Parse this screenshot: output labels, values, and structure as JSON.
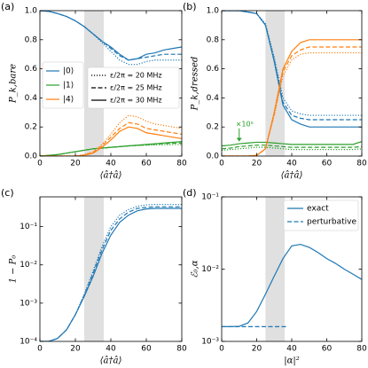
{
  "chart_data": [
    {
      "type": "line",
      "panel_label": "(a)",
      "xlabel": "⟨â†â⟩",
      "ylabel": "P_k,bare",
      "xlim": [
        0,
        80
      ],
      "xticks": [
        0,
        20,
        40,
        60,
        80
      ],
      "ylim": [
        0,
        1
      ],
      "yticks": [
        {
          "value": 0,
          "label": "0.0"
        },
        {
          "value": 0.2,
          "label": "0.2"
        },
        {
          "value": 0.4,
          "label": "0.4"
        },
        {
          "value": 0.6,
          "label": "0.6"
        },
        {
          "value": 0.8,
          "label": "0.8"
        },
        {
          "value": 1,
          "label": "1.0"
        }
      ],
      "shade": [
        25,
        36
      ],
      "x": [
        0,
        5,
        10,
        15,
        20,
        25,
        30,
        35,
        40,
        45,
        50,
        55,
        60,
        65,
        70,
        75,
        80
      ],
      "series": [
        {
          "color": "#1f77b4",
          "linestyle": "dotted",
          "values": [
            1.0,
            0.995,
            0.98,
            0.96,
            0.93,
            0.89,
            0.84,
            0.78,
            0.72,
            0.66,
            0.63,
            0.63,
            0.65,
            0.66,
            0.66,
            0.66,
            0.66
          ]
        },
        {
          "color": "#1f77b4",
          "linestyle": "dashed",
          "values": [
            1.0,
            0.995,
            0.98,
            0.96,
            0.93,
            0.89,
            0.84,
            0.79,
            0.74,
            0.69,
            0.66,
            0.67,
            0.68,
            0.69,
            0.7,
            0.7,
            0.7
          ]
        },
        {
          "color": "#1f77b4",
          "linestyle": "solid",
          "values": [
            1.0,
            0.995,
            0.98,
            0.96,
            0.93,
            0.89,
            0.84,
            0.79,
            0.75,
            0.7,
            0.66,
            0.67,
            0.7,
            0.71,
            0.73,
            0.74,
            0.75
          ]
        },
        {
          "color": "#2ca02c",
          "linestyle": "dotted",
          "values": [
            0,
            0.005,
            0.01,
            0.02,
            0.03,
            0.04,
            0.05,
            0.055,
            0.06,
            0.065,
            0.07,
            0.072,
            0.074,
            0.076,
            0.078,
            0.079,
            0.08
          ]
        },
        {
          "color": "#2ca02c",
          "linestyle": "dashed",
          "values": [
            0,
            0.005,
            0.01,
            0.02,
            0.03,
            0.04,
            0.05,
            0.055,
            0.06,
            0.065,
            0.07,
            0.074,
            0.078,
            0.082,
            0.086,
            0.088,
            0.09
          ]
        },
        {
          "color": "#2ca02c",
          "linestyle": "solid",
          "values": [
            0,
            0.005,
            0.01,
            0.02,
            0.03,
            0.04,
            0.05,
            0.055,
            0.06,
            0.065,
            0.07,
            0.075,
            0.08,
            0.085,
            0.09,
            0.095,
            0.1
          ]
        },
        {
          "color": "#ff7f0e",
          "linestyle": "dotted",
          "values": [
            0,
            0,
            0,
            0,
            0,
            0.01,
            0.03,
            0.08,
            0.15,
            0.23,
            0.28,
            0.27,
            0.24,
            0.22,
            0.21,
            0.2,
            0.19
          ]
        },
        {
          "color": "#ff7f0e",
          "linestyle": "dashed",
          "values": [
            0,
            0,
            0,
            0,
            0,
            0.007,
            0.025,
            0.07,
            0.13,
            0.19,
            0.23,
            0.22,
            0.19,
            0.18,
            0.17,
            0.16,
            0.15
          ]
        },
        {
          "color": "#ff7f0e",
          "linestyle": "solid",
          "values": [
            0,
            0,
            0,
            0,
            0,
            0.005,
            0.02,
            0.06,
            0.11,
            0.17,
            0.2,
            0.19,
            0.16,
            0.15,
            0.14,
            0.13,
            0.12
          ]
        }
      ],
      "legend": [
        {
          "label": "|0⟩",
          "color": "#1f77b4"
        },
        {
          "label": "|1⟩",
          "color": "#2ca02c"
        },
        {
          "label": "|4⟩",
          "color": "#ff7f0e"
        }
      ],
      "style_legend": [
        {
          "label": "ε/2π = 20 MHz",
          "linestyle": "dotted"
        },
        {
          "label": "ε/2π = 25 MHz",
          "linestyle": "dashed"
        },
        {
          "label": "ε/2π = 30 MHz",
          "linestyle": "solid"
        }
      ]
    },
    {
      "type": "line",
      "panel_label": "(b)",
      "xlabel": "⟨â†â⟩",
      "ylabel": "P_k,dressed",
      "annotation": "×10⁵",
      "xlim": [
        0,
        80
      ],
      "xticks": [
        0,
        20,
        40,
        60,
        80
      ],
      "ylim": [
        0,
        1
      ],
      "yticks": [
        {
          "value": 0,
          "label": "0.0"
        },
        {
          "value": 0.2,
          "label": "0.2"
        },
        {
          "value": 0.4,
          "label": "0.4"
        },
        {
          "value": 0.6,
          "label": "0.6"
        },
        {
          "value": 0.8,
          "label": "0.8"
        },
        {
          "value": 1,
          "label": "1.0"
        }
      ],
      "shade": [
        25,
        36
      ],
      "x": [
        0,
        5,
        10,
        15,
        20,
        25,
        30,
        35,
        40,
        45,
        50,
        55,
        60,
        65,
        70,
        75,
        80
      ],
      "series": [
        {
          "color": "#1f77b4",
          "linestyle": "dotted",
          "values": [
            1.0,
            1.0,
            1.0,
            0.99,
            0.98,
            0.91,
            0.68,
            0.4,
            0.31,
            0.29,
            0.28,
            0.28,
            0.28,
            0.28,
            0.28,
            0.28,
            0.28
          ]
        },
        {
          "color": "#1f77b4",
          "linestyle": "dashed",
          "values": [
            1.0,
            1.0,
            1.0,
            0.99,
            0.98,
            0.9,
            0.66,
            0.37,
            0.28,
            0.26,
            0.25,
            0.25,
            0.25,
            0.25,
            0.25,
            0.25,
            0.25
          ]
        },
        {
          "color": "#1f77b4",
          "linestyle": "solid",
          "values": [
            1.0,
            1.0,
            1.0,
            0.99,
            0.98,
            0.9,
            0.65,
            0.35,
            0.25,
            0.22,
            0.2,
            0.2,
            0.2,
            0.2,
            0.2,
            0.2,
            0.2
          ]
        },
        {
          "color": "#2ca02c",
          "linestyle": "dotted",
          "values": [
            0.04,
            0.045,
            0.05,
            0.055,
            0.06,
            0.06,
            0.055,
            0.05,
            0.045,
            0.045,
            0.045,
            0.045,
            0.045,
            0.045,
            0.045,
            0.045,
            0.05
          ]
        },
        {
          "color": "#2ca02c",
          "linestyle": "dashed",
          "values": [
            0.05,
            0.055,
            0.065,
            0.07,
            0.075,
            0.075,
            0.07,
            0.065,
            0.06,
            0.06,
            0.06,
            0.06,
            0.06,
            0.06,
            0.06,
            0.06,
            0.065
          ]
        },
        {
          "color": "#2ca02c",
          "linestyle": "solid",
          "values": [
            0.07,
            0.075,
            0.085,
            0.09,
            0.095,
            0.095,
            0.09,
            0.085,
            0.08,
            0.08,
            0.08,
            0.08,
            0.08,
            0.08,
            0.08,
            0.08,
            0.1
          ]
        },
        {
          "color": "#ff7f0e",
          "linestyle": "dotted",
          "values": [
            0,
            0,
            0,
            0,
            0.005,
            0.05,
            0.28,
            0.55,
            0.66,
            0.7,
            0.71,
            0.71,
            0.71,
            0.71,
            0.71,
            0.71,
            0.71
          ]
        },
        {
          "color": "#ff7f0e",
          "linestyle": "dashed",
          "values": [
            0,
            0,
            0,
            0,
            0.005,
            0.05,
            0.29,
            0.58,
            0.69,
            0.73,
            0.75,
            0.75,
            0.75,
            0.75,
            0.75,
            0.75,
            0.75
          ]
        },
        {
          "color": "#ff7f0e",
          "linestyle": "solid",
          "values": [
            0,
            0,
            0,
            0,
            0.005,
            0.05,
            0.3,
            0.6,
            0.72,
            0.78,
            0.8,
            0.8,
            0.8,
            0.8,
            0.8,
            0.8,
            0.8
          ]
        }
      ]
    },
    {
      "type": "line",
      "panel_label": "(c)",
      "xlabel": "⟨â†â⟩",
      "ylabel": "1 − P₀",
      "yscale": "log",
      "xlim": [
        0,
        80
      ],
      "xticks": [
        0,
        20,
        40,
        60,
        80
      ],
      "ylim": [
        0.0001,
        0.6
      ],
      "yticks": [
        {
          "value": 0.0001,
          "label": "10⁻⁴"
        },
        {
          "value": 0.001,
          "label": "10⁻³"
        },
        {
          "value": 0.01,
          "label": "10⁻²"
        },
        {
          "value": 0.1,
          "label": "10⁻¹"
        }
      ],
      "shade": [
        25,
        36
      ],
      "x": [
        0,
        5,
        10,
        15,
        20,
        25,
        30,
        35,
        40,
        45,
        50,
        55,
        60,
        65,
        70,
        75,
        80
      ],
      "series": [
        {
          "color": "#1f77b4",
          "linestyle": "dotted",
          "values": [
            0.0001,
            0.0001,
            0.00012,
            0.0002,
            0.0005,
            0.0017,
            0.007,
            0.03,
            0.1,
            0.2,
            0.28,
            0.34,
            0.37,
            0.38,
            0.38,
            0.38,
            0.38
          ]
        },
        {
          "color": "#1f77b4",
          "linestyle": "dashed",
          "values": [
            0.0001,
            0.0001,
            0.00012,
            0.0002,
            0.0005,
            0.0016,
            0.006,
            0.025,
            0.08,
            0.16,
            0.24,
            0.3,
            0.32,
            0.33,
            0.33,
            0.33,
            0.33
          ]
        },
        {
          "color": "#1f77b4",
          "linestyle": "solid",
          "values": [
            0.0001,
            0.0001,
            0.00012,
            0.0002,
            0.0005,
            0.0015,
            0.005,
            0.02,
            0.06,
            0.13,
            0.2,
            0.26,
            0.29,
            0.3,
            0.3,
            0.3,
            0.3
          ]
        }
      ]
    },
    {
      "type": "line",
      "panel_label": "(d)",
      "xlabel": "|α|²",
      "ylabel": "ℰ₀,α",
      "yscale": "log",
      "xlim": [
        0,
        80
      ],
      "xticks": [
        0,
        20,
        40,
        60,
        80
      ],
      "ylim": [
        0.001,
        0.1
      ],
      "yticks": [
        {
          "value": 0.001,
          "label": "10⁻³"
        },
        {
          "value": 0.01,
          "label": "10⁻²"
        },
        {
          "value": 0.1,
          "label": "10⁻¹"
        }
      ],
      "shade": [
        25,
        36
      ],
      "x": [
        0,
        5,
        10,
        15,
        20,
        25,
        30,
        35,
        40,
        45,
        50,
        55,
        60,
        65,
        70,
        75,
        80
      ],
      "series": [
        {
          "name": "exact",
          "color": "#1f77b4",
          "linestyle": "solid",
          "values": [
            0.0016,
            0.0016,
            0.00162,
            0.0018,
            0.0026,
            0.0045,
            0.008,
            0.014,
            0.021,
            0.022,
            0.02,
            0.017,
            0.014,
            0.012,
            0.01,
            0.0085,
            0.0072
          ]
        },
        {
          "name": "perturbative",
          "color": "#1f77b4",
          "linestyle": "dashed",
          "x": [
            0,
            38
          ],
          "values": [
            0.0016,
            0.0016
          ]
        }
      ]
    }
  ]
}
